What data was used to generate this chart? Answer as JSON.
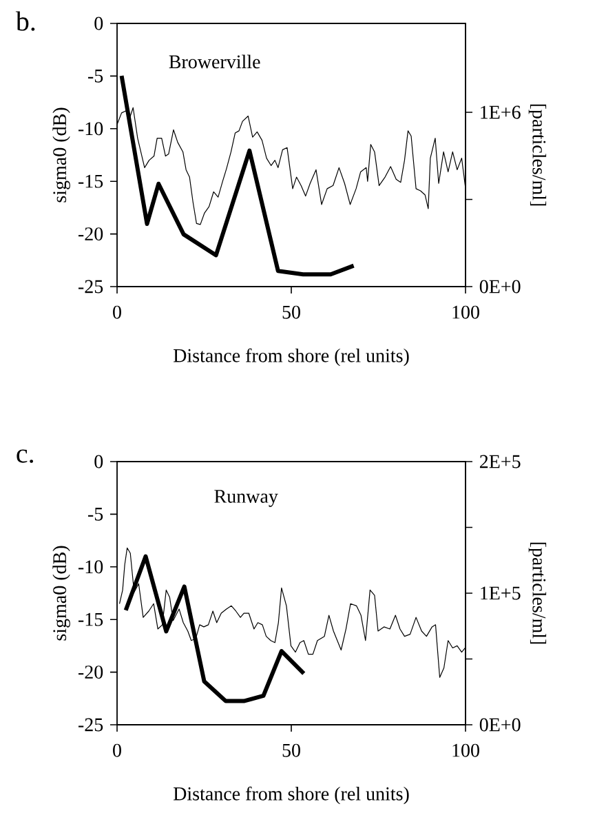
{
  "chart_data": [
    {
      "type": "line",
      "title": "b.",
      "annotations": [
        "Browerville"
      ],
      "xlabel": "Distance from shore (rel units)",
      "ylabel": "sigma0 (dB)",
      "y2label": "[particles/ml]",
      "xlim": [
        0,
        100
      ],
      "xticks": [
        0,
        50,
        100
      ],
      "ylim": [
        -25,
        0
      ],
      "yticks": [
        -25,
        -20,
        -15,
        -10,
        -5,
        0
      ],
      "y2lim": [
        0,
        1510000
      ],
      "y2ticks": [
        {
          "value": 0,
          "label": "0E+0"
        },
        {
          "value": 500000,
          "label": null
        },
        {
          "value": 1000000,
          "label": "1E+6"
        }
      ],
      "grid": false,
      "marker": "none",
      "line_style": "solid",
      "series": [
        {
          "color": "#000000",
          "x": [
            0,
            1.3,
            2.6,
            3.6,
            4.6,
            5.9,
            7.9,
            9.2,
            10.6,
            11.5,
            12.8,
            13.9,
            14.8,
            16.2,
            17.4,
            18.9,
            19.8,
            20.8,
            21.8,
            22.8,
            23.9,
            25.1,
            26.4,
            27.7,
            29,
            30.3,
            31.4,
            32.7,
            33.9,
            35,
            36,
            37.6,
            38.9,
            40.2,
            41.6,
            42.9,
            44.2,
            45.3,
            46.2,
            47.5,
            48.8,
            50.4,
            51.5,
            52.8,
            54.1,
            55.4,
            57.1,
            58.7,
            60.3,
            62,
            63.7,
            65.3,
            66.9,
            68.6,
            69.9,
            71.5,
            71.9,
            72.8,
            73.9,
            75.2,
            76.9,
            78.5,
            80.1,
            81.4,
            82.5,
            83.5,
            84.4,
            85.8,
            87.1,
            88.4,
            89.3,
            89.9,
            91.3,
            92.3,
            93.7,
            95,
            96.3,
            97.6,
            98.9,
            99.9
          ],
          "values": [
            -9.6,
            -8.5,
            -8.3,
            -9,
            -8,
            -10.9,
            -13.7,
            -13,
            -12.6,
            -10.9,
            -10.9,
            -12.6,
            -12.4,
            -10.1,
            -11.3,
            -12.2,
            -13.9,
            -14.6,
            -17,
            -19,
            -19.1,
            -18,
            -17.4,
            -16,
            -16.5,
            -15,
            -13.8,
            -12.2,
            -10.4,
            -10.2,
            -9.3,
            -8.8,
            -10.8,
            -10.3,
            -11.1,
            -12.8,
            -13.5,
            -13,
            -13.7,
            -12,
            -11.8,
            -15.7,
            -14.6,
            -15.4,
            -16.4,
            -15.2,
            -13.9,
            -17.2,
            -15.7,
            -15.4,
            -13.7,
            -15.2,
            -17.2,
            -15.7,
            -14.1,
            -13.7,
            -15,
            -11.5,
            -12.2,
            -15.4,
            -14.6,
            -13.6,
            -14.8,
            -15.1,
            -13,
            -10.2,
            -10.7,
            -15.7,
            -15.9,
            -16.3,
            -17.6,
            -12.8,
            -10.9,
            -15.2,
            -12.2,
            -14.1,
            -12.2,
            -13.9,
            -12.8,
            -15.4
          ]
        },
        {
          "color": "#000000",
          "axis": "y2",
          "x": [
            1.3,
            8.6,
            11.9,
            19.1,
            28.4,
            38,
            46.2,
            53.4,
            61.3,
            67.9
          ],
          "values": [
            1210000,
            360000,
            590000,
            300000,
            180000,
            780000,
            90000,
            70000,
            70000,
            120000
          ]
        }
      ]
    },
    {
      "type": "line",
      "title": "c.",
      "annotations": [
        "Runway"
      ],
      "xlabel": "Distance from shore (rel units)",
      "ylabel": "sigma0 (dB)",
      "y2label": "[particles/ml]",
      "xlim": [
        0,
        100
      ],
      "xticks": [
        0,
        50,
        100
      ],
      "ylim": [
        -25,
        0
      ],
      "yticks": [
        -25,
        -20,
        -15,
        -10,
        -5,
        0
      ],
      "y2lim": [
        0,
        200000
      ],
      "y2ticks": [
        {
          "value": 0,
          "label": "0E+0"
        },
        {
          "value": 50000,
          "label": null
        },
        {
          "value": 100000,
          "label": "1E+5"
        },
        {
          "value": 150000,
          "label": null
        },
        {
          "value": 200000,
          "label": "2E+5"
        }
      ],
      "grid": false,
      "marker": "none",
      "line_style": "solid",
      "series": [
        {
          "color": "#000000",
          "x": [
            0.7,
            1.6,
            2.2,
            2.9,
            3.8,
            4.9,
            6.2,
            7.5,
            9.1,
            10.5,
            11.7,
            13,
            14.1,
            15.1,
            16.1,
            17.8,
            19,
            20.3,
            21.3,
            22.6,
            23.7,
            24.9,
            26.2,
            27.5,
            28.6,
            29.9,
            31.4,
            32.8,
            34.1,
            35.4,
            36.4,
            37.8,
            39.3,
            40.4,
            41.7,
            42.8,
            44.1,
            45.3,
            46.3,
            47.2,
            48.6,
            49.9,
            51.2,
            52.5,
            53.6,
            54.9,
            56.2,
            57.5,
            59.5,
            60.8,
            62.1,
            64.3,
            65.7,
            67,
            68.7,
            70,
            71.3,
            72.6,
            73.9,
            74.9,
            76.6,
            78.3,
            79.9,
            81.2,
            82.5,
            84.1,
            85.8,
            87.4,
            88.8,
            90.4,
            91.4,
            92.6,
            93.8,
            95,
            96.3,
            97.6,
            98.9,
            99.9
          ],
          "values": [
            -13.5,
            -12.2,
            -9.8,
            -8.2,
            -8.7,
            -12.4,
            -11.6,
            -14.8,
            -14.2,
            -13.5,
            -15.9,
            -15.5,
            -12.2,
            -12.9,
            -15.1,
            -14,
            -15.3,
            -16.1,
            -17,
            -16.8,
            -15.5,
            -15.7,
            -15.5,
            -14.2,
            -15.3,
            -14.4,
            -14,
            -13.7,
            -14.2,
            -14.8,
            -14.4,
            -14.4,
            -15.9,
            -15.3,
            -15.5,
            -16.6,
            -17,
            -17.2,
            -15.3,
            -12,
            -13.7,
            -17.5,
            -18.1,
            -17.2,
            -17,
            -18.3,
            -18.3,
            -17,
            -16.6,
            -14.6,
            -16.1,
            -17.9,
            -15.9,
            -13.5,
            -13.7,
            -14.6,
            -17,
            -12.2,
            -12.7,
            -16.1,
            -15.7,
            -15.9,
            -14.6,
            -15.9,
            -16.6,
            -16.4,
            -14.8,
            -16.1,
            -16.6,
            -15.7,
            -15.5,
            -20.5,
            -19.6,
            -17,
            -17.7,
            -17.5,
            -18.1,
            -17.7
          ]
        },
        {
          "color": "#000000",
          "axis": "y2",
          "x": [
            2.5,
            8.2,
            14.1,
            19.3,
            25,
            31.2,
            36.4,
            42,
            47.2,
            53.6
          ],
          "values": [
            87000,
            128000,
            71000,
            105000,
            33000,
            18000,
            18000,
            22000,
            56000,
            39000
          ]
        }
      ]
    }
  ]
}
